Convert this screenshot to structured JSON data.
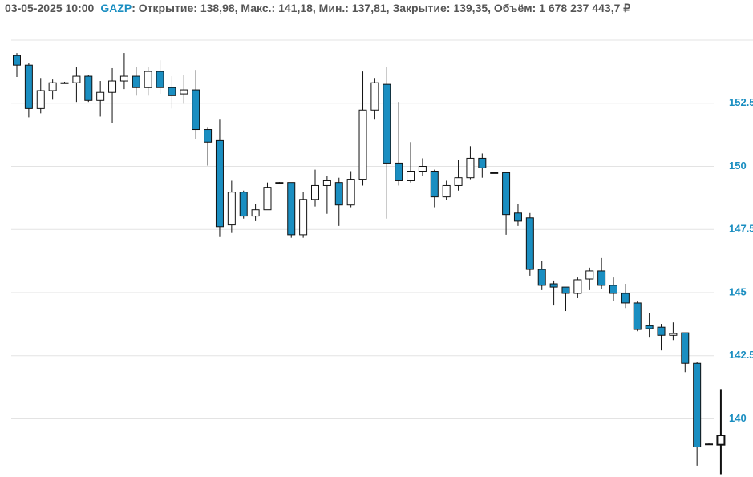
{
  "header": {
    "datetime": "03-05-2025 10:00",
    "ticker": "GAZP",
    "info": ": Открытие: 138,98, Макс.: 141,18, Мин.: 137,81, Закрытие: 139,35, Объём: 1 678 237 443,7 ₽"
  },
  "chart_data": {
    "type": "candlestick",
    "open": [
      154.39,
      154.01,
      152.29,
      153.0,
      153.31,
      153.31,
      153.57,
      152.61,
      152.93,
      153.38,
      153.57,
      153.12,
      153.76,
      153.12,
      152.87,
      153.03,
      151.46,
      151.02,
      147.68,
      148.98,
      148.03,
      148.28,
      149.36,
      149.36,
      147.29,
      148.69,
      149.24,
      149.36,
      148.47,
      149.49,
      152.23,
      153.25,
      150.13,
      149.43,
      149.81,
      149.81,
      148.79,
      149.24,
      149.55,
      150.32,
      149.75,
      149.75,
      148.15,
      147.96,
      145.92,
      145.35,
      145.22,
      144.97,
      145.54,
      145.86,
      145.29,
      144.97,
      144.59,
      143.69,
      143.63,
      143.31,
      143.41,
      142.2,
      139.01,
      138.98
    ],
    "high": [
      154.49,
      154.08,
      153.5,
      153.44,
      153.35,
      153.92,
      153.63,
      153.38,
      153.89,
      154.49,
      153.95,
      153.92,
      154.2,
      153.57,
      153.63,
      153.82,
      151.53,
      151.85,
      149.43,
      149.04,
      148.5,
      149.36,
      149.38,
      149.36,
      148.98,
      149.87,
      149.62,
      149.55,
      149.81,
      153.76,
      153.5,
      153.95,
      152.55,
      150.96,
      150.32,
      149.87,
      149.43,
      150.25,
      150.8,
      150.51,
      149.77,
      149.75,
      148.5,
      148.15,
      146.24,
      145.48,
      145.22,
      145.6,
      145.99,
      146.37,
      145.6,
      145.35,
      144.65,
      144.2,
      143.76,
      143.82,
      143.41,
      142.26,
      139.03,
      141.18
    ],
    "low": [
      153.54,
      151.94,
      152.1,
      152.64,
      153.28,
      152.55,
      152.55,
      151.97,
      151.72,
      153.06,
      152.8,
      152.8,
      152.87,
      152.29,
      152.48,
      151.08,
      150.03,
      147.2,
      147.36,
      147.93,
      147.83,
      148.28,
      149.34,
      147.17,
      147.17,
      148.41,
      148.12,
      147.64,
      148.38,
      149.24,
      151.85,
      147.93,
      149.24,
      149.36,
      149.62,
      148.38,
      148.66,
      149.04,
      149.49,
      149.55,
      149.73,
      147.29,
      147.64,
      145.67,
      145.1,
      144.49,
      144.27,
      144.78,
      145.1,
      145.16,
      144.65,
      144.39,
      143.47,
      143.25,
      142.71,
      143.12,
      141.85,
      138.15,
      138.99,
      137.81
    ],
    "close": [
      154.01,
      152.29,
      153.0,
      153.31,
      153.31,
      153.57,
      152.61,
      152.93,
      153.38,
      153.57,
      153.12,
      153.76,
      153.12,
      152.8,
      153.03,
      151.46,
      150.96,
      147.61,
      148.98,
      148.03,
      148.28,
      149.17,
      149.36,
      147.29,
      148.69,
      149.24,
      149.43,
      148.47,
      149.49,
      152.23,
      153.31,
      150.13,
      149.43,
      149.81,
      150.0,
      148.79,
      149.24,
      149.55,
      150.32,
      149.94,
      149.75,
      148.09,
      147.83,
      145.92,
      145.29,
      145.22,
      144.97,
      145.51,
      145.86,
      145.29,
      144.97,
      144.59,
      143.54,
      143.57,
      143.31,
      143.38,
      142.2,
      138.89,
      139.01,
      139.35
    ],
    "up_color": "#ffffff",
    "down_color": "#1a8ec1",
    "ylim": [
      137.7,
      155
    ],
    "yticks": [
      140,
      142.5,
      145,
      147.5,
      150,
      152.5
    ],
    "grid": true
  }
}
